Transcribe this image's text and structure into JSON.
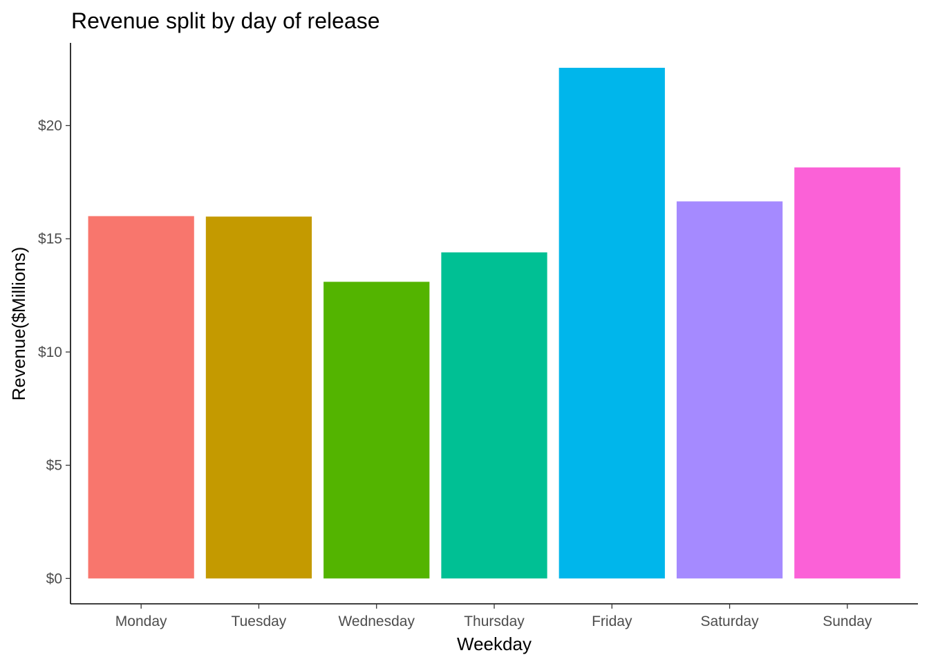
{
  "chart_data": {
    "type": "bar",
    "title": "Revenue split by day of release",
    "xlabel": "Weekday",
    "ylabel": "Revenue($Millions)",
    "categories": [
      "Monday",
      "Tuesday",
      "Wednesday",
      "Thursday",
      "Friday",
      "Saturday",
      "Sunday"
    ],
    "values": [
      16.0,
      15.98,
      13.1,
      14.4,
      22.55,
      16.65,
      18.15
    ],
    "colors": [
      "#F8766D",
      "#C49A00",
      "#53B400",
      "#00C094",
      "#00B6EB",
      "#A58AFF",
      "#FB61D7"
    ],
    "ylim": [
      -1.12,
      23.65
    ],
    "yticks": [
      0,
      5,
      10,
      15,
      20
    ],
    "ytick_labels": [
      "$0",
      "$5",
      "$10",
      "$15",
      "$20"
    ],
    "grid": false,
    "legend": "none"
  }
}
